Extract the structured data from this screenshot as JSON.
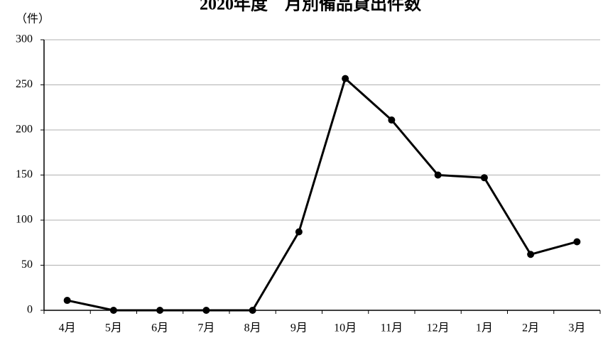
{
  "chart_data": {
    "type": "line",
    "title": "2020年度　月別備品貸出件数",
    "y_label": "（件）",
    "categories": [
      "4月",
      "5月",
      "6月",
      "7月",
      "8月",
      "9月",
      "10月",
      "11月",
      "12月",
      "1月",
      "2月",
      "3月"
    ],
    "values": [
      11,
      0,
      0,
      0,
      0,
      87,
      257,
      211,
      150,
      147,
      62,
      76
    ],
    "color": "#000000",
    "ylim": [
      0,
      300
    ],
    "yticks": [
      0,
      50,
      100,
      150,
      200,
      250,
      300
    ],
    "grid": true
  }
}
